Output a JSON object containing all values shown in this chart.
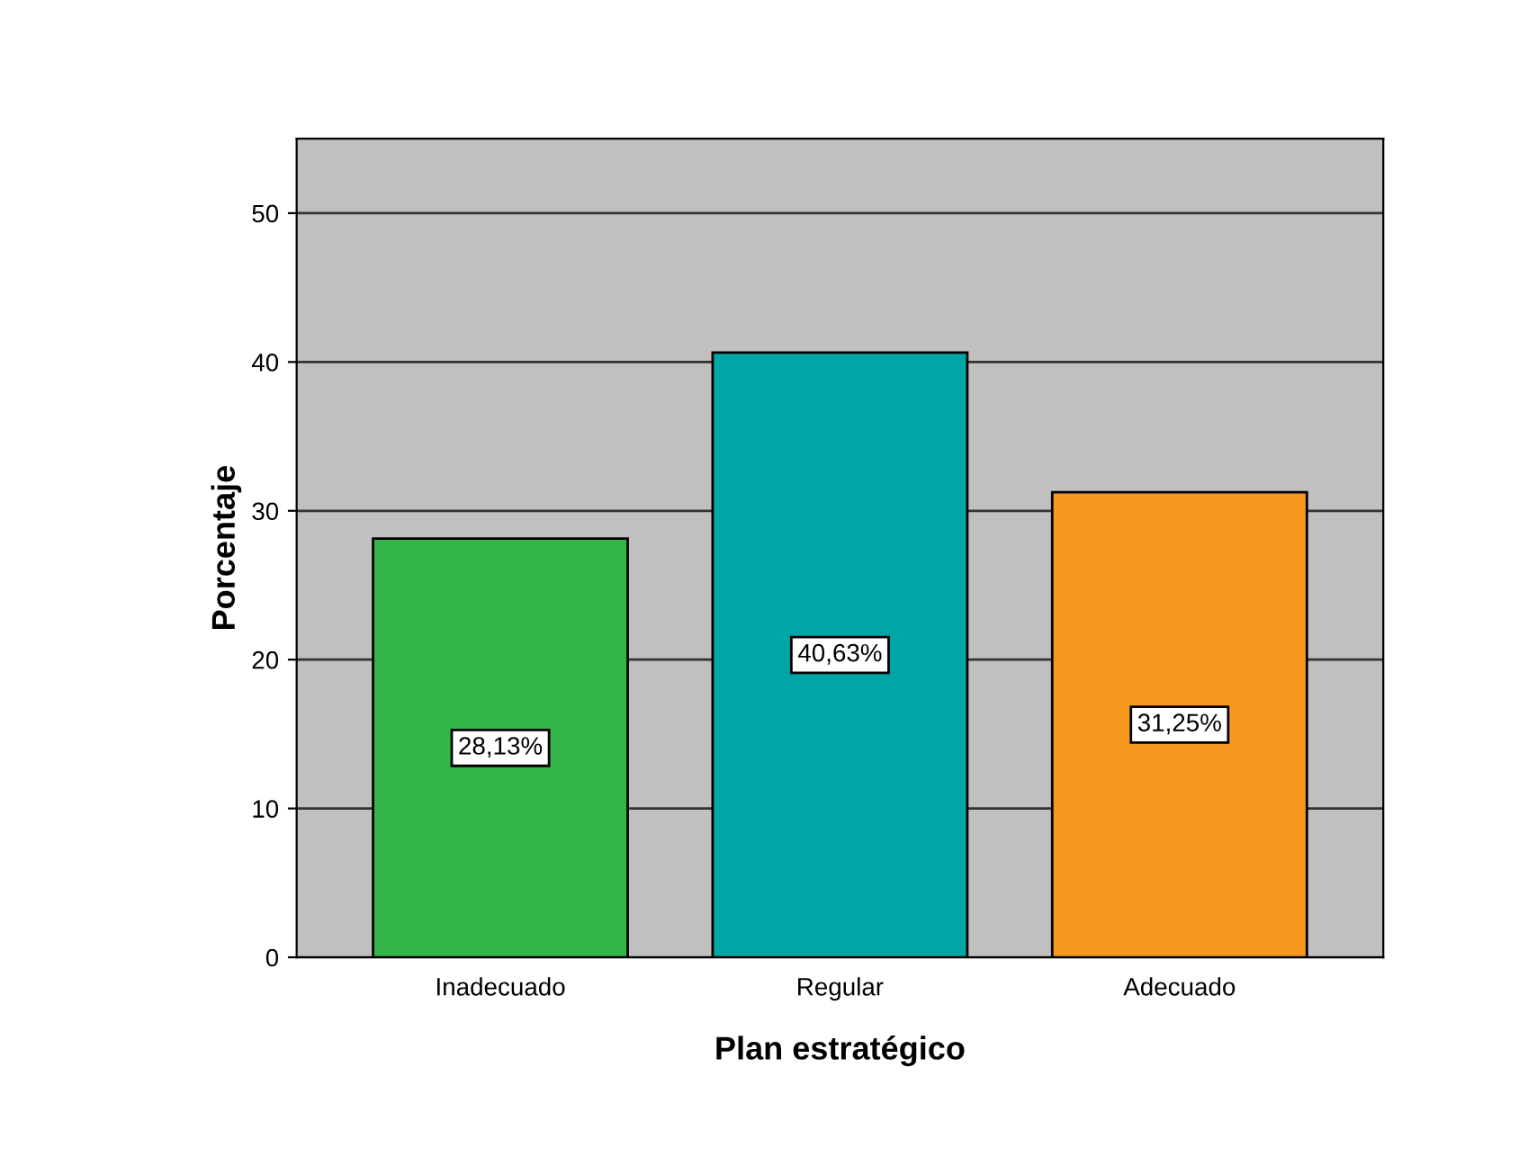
{
  "chart_data": {
    "type": "bar",
    "xlabel": "Plan estratégico",
    "ylabel": "Porcentaje",
    "categories": [
      "Inadecuado",
      "Regular",
      "Adecuado"
    ],
    "values": [
      28.13,
      40.63,
      31.25
    ],
    "colors": [
      "#33b54a",
      "#00a6a6",
      "#f7991e"
    ],
    "value_labels": [
      "28,13%",
      "40,63%",
      "31,25%"
    ],
    "ylim": [
      0,
      55
    ],
    "yticks": [
      0,
      10,
      20,
      30,
      40,
      50
    ],
    "grid": "y"
  }
}
